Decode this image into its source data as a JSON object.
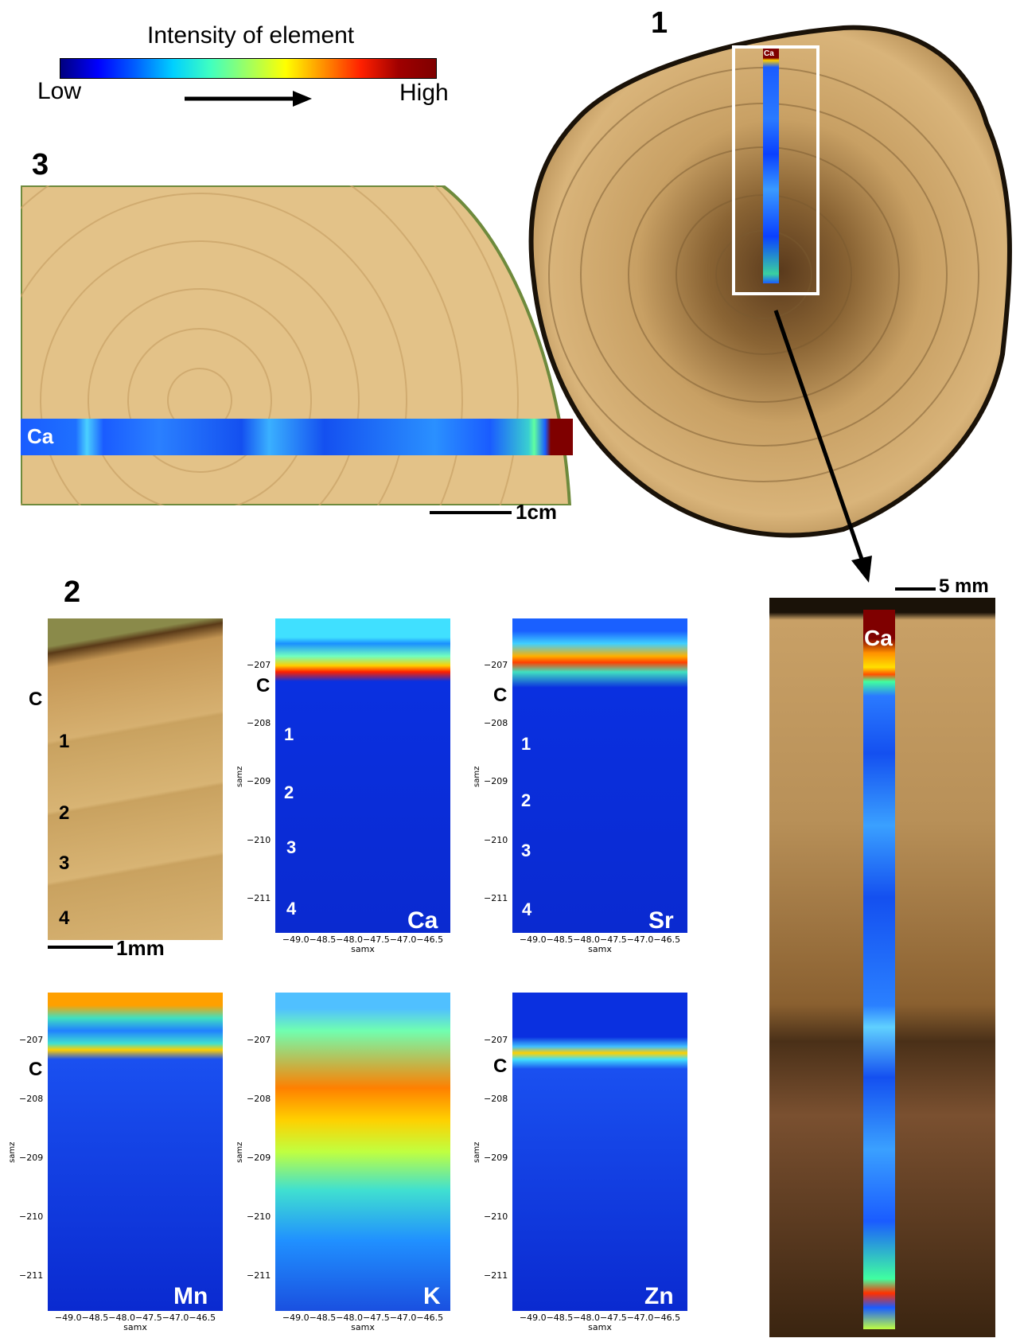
{
  "colorbar": {
    "title": "Intensity of element",
    "low": "Low",
    "high": "High"
  },
  "panels": {
    "p1": "1",
    "p2": "2",
    "p3": "3"
  },
  "scales": {
    "s1cm": "1cm",
    "s5mm": "5 mm",
    "s1mm": "1mm"
  },
  "strip_labels": {
    "p1_small": "Ca",
    "p3": "Ca",
    "zoom": "Ca"
  },
  "photo_labels": [
    "C",
    "1",
    "2",
    "3",
    "4"
  ],
  "maps": [
    {
      "element": "Ca",
      "c": "C",
      "nums": [
        "1",
        "2",
        "3",
        "4"
      ]
    },
    {
      "element": "Sr",
      "c": "C",
      "nums": [
        "1",
        "2",
        "3",
        "4"
      ]
    },
    {
      "element": "Mn",
      "c": "C",
      "nums": []
    },
    {
      "element": "K",
      "c": "",
      "nums": []
    },
    {
      "element": "Zn",
      "c": "C",
      "nums": []
    }
  ],
  "axes": {
    "y_ticks": [
      "−207",
      "−208",
      "−209",
      "−210",
      "−211"
    ],
    "x_ticks": "−49.0−48.5−48.0−47.5−47.0−46.5",
    "xlabel": "samx",
    "ylabel": "samz"
  },
  "colors": {
    "low": "#00007f",
    "mid": "#40ffc0",
    "high": "#7f0000"
  }
}
